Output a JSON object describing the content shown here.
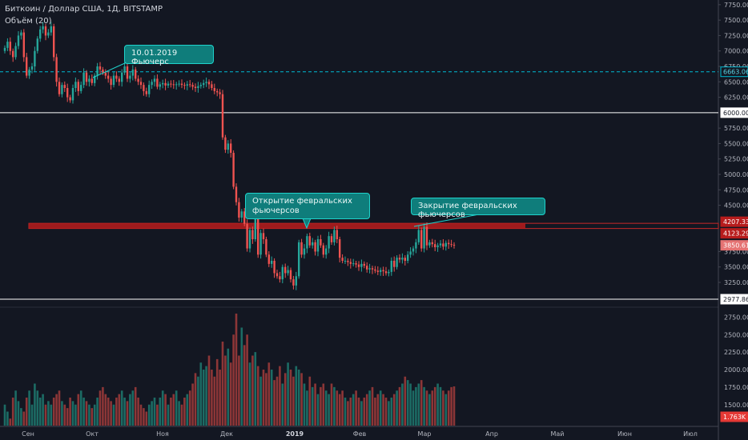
{
  "header": {
    "symbol_line": "Биткоин / Доллар США, 1Д, BITSTAMP",
    "volume_line": "Объём (20)"
  },
  "colors": {
    "background": "#131722",
    "up": "#26a69a",
    "down": "#ef5350",
    "volume_up": "#1c6b64",
    "volume_down": "#8c3637",
    "zone": "#b71c1c",
    "callout": "#0f7d7b",
    "dashed_line": "#00bcd4"
  },
  "callouts": [
    {
      "text": "10.01.2019 Фьючерс"
    },
    {
      "text": "Открытие февральских фьючерсов"
    },
    {
      "text": "Закрытие февральских фьючерсов"
    }
  ],
  "chart_data": {
    "type": "candlestick",
    "price_axis": {
      "ticks": [
        "7750.00",
        "7500.00",
        "7250.00",
        "7000.00",
        "6750.00",
        "6500.00",
        "6250.00",
        "5750.00",
        "5500.00",
        "5250.00",
        "5000.00",
        "4750.00",
        "4500.00",
        "3750.00",
        "3500.00",
        "3250.00"
      ],
      "range": [
        2900,
        7800
      ]
    },
    "volume_axis": {
      "ticks": [
        "2750.00",
        "2500.00",
        "2250.00",
        "2000.00",
        "1750.00",
        "1500.00"
      ],
      "range": [
        1200,
        2800
      ]
    },
    "x_ticks": [
      "Сен",
      "Окт",
      "Ноя",
      "Дек",
      "2019",
      "Фев",
      "Мар",
      "Апр",
      "Май",
      "Июн",
      "Июл"
    ],
    "levels": [
      {
        "label": "6663.06",
        "value": 6663.06,
        "style": "dashed"
      },
      {
        "label": "6000.00",
        "value": 6000,
        "style": "solid"
      },
      {
        "label": "2977.86",
        "value": 2977.86,
        "style": "solid"
      }
    ],
    "zone": {
      "top": 4207.33,
      "bottom": 4123.29,
      "top_label": "4207.33",
      "bottom_label": "4123.29"
    },
    "last_price": {
      "label": "3850.61",
      "value": 3850.61
    },
    "last_volume": {
      "label": "1.763K"
    },
    "close": [
      7050,
      7150,
      7000,
      6900,
      7080,
      7250,
      7300,
      6900,
      6600,
      6700,
      6750,
      7000,
      7200,
      7350,
      7400,
      7250,
      7300,
      7400,
      6900,
      6500,
      6300,
      6450,
      6400,
      6250,
      6200,
      6400,
      6500,
      6350,
      6450,
      6650,
      6500,
      6550,
      6480,
      6600,
      6750,
      6700,
      6650,
      6600,
      6550,
      6450,
      6600,
      6550,
      6500,
      6650,
      6750,
      6550,
      6600,
      6700,
      6550,
      6500,
      6450,
      6350,
      6300,
      6450,
      6500,
      6550,
      6420,
      6460,
      6480,
      6440,
      6470,
      6460,
      6450,
      6460,
      6470,
      6450,
      6440,
      6460,
      6450,
      6420,
      6400,
      6430,
      6450,
      6480,
      6500,
      6460,
      6400,
      6350,
      6330,
      6300,
      5600,
      5400,
      5500,
      5350,
      4800,
      4550,
      4300,
      4400,
      4200,
      3800,
      4100,
      3950,
      4300,
      3700,
      4050,
      3950,
      3700,
      3550,
      3600,
      3400,
      3350,
      3300,
      3500,
      3400,
      3450,
      3300,
      3200,
      3350,
      3900,
      3700,
      3800,
      4000,
      3850,
      3900,
      3750,
      3950,
      3850,
      3700,
      3800,
      4000,
      3900,
      4100,
      3950,
      3650,
      3600,
      3600,
      3580,
      3550,
      3560,
      3540,
      3500,
      3550,
      3520,
      3460,
      3480,
      3460,
      3440,
      3420,
      3450,
      3430,
      3400,
      3420,
      3600,
      3500,
      3650,
      3620,
      3650,
      3600,
      3700,
      3750,
      3800,
      3900,
      4100,
      3800,
      4150,
      3850,
      3900,
      3870,
      3820,
      3850,
      3880,
      3830,
      3890,
      3870,
      3860,
      3850
    ],
    "volume": [
      1500,
      1400,
      1300,
      1600,
      1700,
      1550,
      1450,
      1400,
      1600,
      1700,
      1500,
      1800,
      1700,
      1600,
      1650,
      1500,
      1550,
      1500,
      1600,
      1650,
      1700,
      1550,
      1500,
      1450,
      1600,
      1550,
      1500,
      1650,
      1700,
      1600,
      1550,
      1500,
      1450,
      1500,
      1600,
      1700,
      1750,
      1650,
      1600,
      1550,
      1500,
      1600,
      1650,
      1700,
      1600,
      1550,
      1650,
      1700,
      1750,
      1600,
      1500,
      1450,
      1400,
      1500,
      1550,
      1600,
      1500,
      1600,
      1700,
      1650,
      1500,
      1600,
      1650,
      1700,
      1550,
      1500,
      1600,
      1650,
      1700,
      1800,
      1950,
      1900,
      2100,
      2000,
      2050,
      2200,
      2000,
      1900,
      2150,
      2000,
      2400,
      2200,
      2300,
      2100,
      2500,
      2800,
      2200,
      2600,
      2350,
      2500,
      2100,
      2200,
      2250,
      2050,
      1900,
      2000,
      1950,
      2100,
      2000,
      1850,
      1900,
      2050,
      1800,
      1950,
      2100,
      2000,
      1900,
      2050,
      2000,
      1950,
      1800,
      1700,
      1900,
      1750,
      1800,
      1650,
      1750,
      1800,
      1700,
      1650,
      1800,
      1750,
      1700,
      1650,
      1700,
      1600,
      1550,
      1600,
      1650,
      1700,
      1600,
      1550,
      1600,
      1650,
      1700,
      1750,
      1600,
      1650,
      1700,
      1650,
      1600,
      1550,
      1600,
      1650,
      1700,
      1750,
      1800,
      1900,
      1850,
      1800,
      1700,
      1750,
      1800,
      1850,
      1750,
      1700,
      1650,
      1700,
      1750,
      1800,
      1750,
      1700,
      1650,
      1700,
      1750,
      1760
    ]
  }
}
